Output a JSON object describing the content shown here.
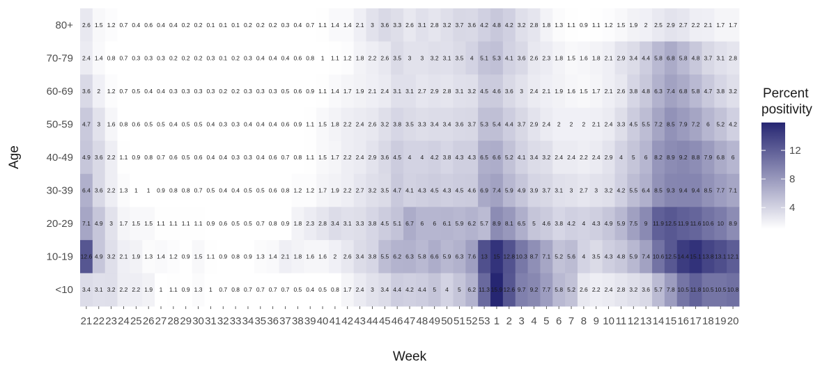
{
  "chart_data": {
    "type": "heatmap",
    "xlabel": "Week",
    "ylabel": "Age",
    "x": [
      "21",
      "22",
      "23",
      "24",
      "25",
      "26",
      "27",
      "28",
      "29",
      "30",
      "31",
      "32",
      "33",
      "34",
      "35",
      "36",
      "37",
      "38",
      "39",
      "40",
      "41",
      "42",
      "43",
      "44",
      "45",
      "46",
      "47",
      "48",
      "49",
      "50",
      "51",
      "52",
      "53",
      "1",
      "2",
      "3",
      "4",
      "5",
      "6",
      "7",
      "8",
      "9",
      "10",
      "11",
      "12",
      "13",
      "14",
      "15",
      "16",
      "17",
      "18",
      "19",
      "20"
    ],
    "y": [
      "80+",
      "70-79",
      "60-69",
      "50-59",
      "40-49",
      "30-39",
      "20-29",
      "10-19",
      "<10"
    ],
    "values": [
      [
        2.6,
        1.5,
        1.2,
        0.7,
        0.4,
        0.6,
        0.4,
        0.4,
        0.2,
        0.2,
        0.1,
        0.1,
        0.1,
        0.2,
        0.2,
        0.2,
        0.3,
        0.4,
        0.7,
        1.1,
        1.4,
        1.4,
        2.1,
        3,
        3.6,
        3.3,
        2.6,
        3.1,
        2.8,
        3.2,
        3.7,
        3.6,
        4.2,
        4.8,
        4.2,
        3.2,
        2.8,
        1.8,
        1.3,
        1.1,
        0.9,
        1.1,
        1.2,
        1.5,
        1.9,
        2,
        2.5,
        2.9,
        2.7,
        2.2,
        2.1,
        1.7,
        1.7
      ],
      [
        2.4,
        1.4,
        0.8,
        0.7,
        0.3,
        0.3,
        0.3,
        0.2,
        0.2,
        0.2,
        0.3,
        0.1,
        0.2,
        0.3,
        0.4,
        0.4,
        0.4,
        0.6,
        0.8,
        1,
        1.1,
        1.2,
        1.8,
        2.2,
        2.6,
        3.5,
        3,
        3,
        3.2,
        3.1,
        3.5,
        4,
        5.1,
        5.3,
        4.1,
        3.6,
        2.6,
        2.3,
        1.8,
        1.5,
        1.6,
        1.8,
        2.1,
        2.9,
        3.4,
        4.4,
        5.8,
        6.8,
        5.8,
        4.8,
        3.7,
        3.1,
        2.8
      ],
      [
        3.6,
        2,
        1.2,
        0.7,
        0.5,
        0.4,
        0.4,
        0.3,
        0.3,
        0.3,
        0.3,
        0.2,
        0.2,
        0.3,
        0.3,
        0.3,
        0.5,
        0.6,
        0.9,
        1.1,
        1.4,
        1.7,
        1.9,
        2.1,
        2.4,
        3.1,
        3.1,
        2.7,
        2.9,
        2.8,
        3.1,
        3.2,
        4.5,
        4.6,
        3.6,
        3,
        2.4,
        2.1,
        1.9,
        1.6,
        1.5,
        1.7,
        2.1,
        2.6,
        3.8,
        4.8,
        6.3,
        7.4,
        6.8,
        5.8,
        4.7,
        3.8,
        3.2
      ],
      [
        4.7,
        3,
        1.6,
        0.8,
        0.6,
        0.5,
        0.5,
        0.4,
        0.5,
        0.5,
        0.4,
        0.3,
        0.3,
        0.4,
        0.4,
        0.4,
        0.6,
        0.9,
        1.1,
        1.5,
        1.8,
        2.2,
        2.4,
        2.6,
        3.2,
        3.8,
        3.5,
        3.3,
        3.4,
        3.4,
        3.6,
        3.7,
        5.3,
        5.4,
        4.4,
        3.7,
        2.9,
        2.4,
        2,
        2,
        2,
        2.1,
        2.4,
        3.3,
        4.5,
        5.5,
        7.2,
        8.5,
        7.9,
        7.2,
        6,
        5.2,
        4.2
      ],
      [
        4.9,
        3.6,
        2.2,
        1.1,
        0.9,
        0.8,
        0.7,
        0.6,
        0.5,
        0.6,
        0.4,
        0.4,
        0.3,
        0.3,
        0.4,
        0.6,
        0.7,
        0.8,
        1.1,
        1.5,
        1.7,
        2.2,
        2.4,
        2.9,
        3.6,
        4.5,
        4,
        4,
        4.2,
        3.8,
        4.3,
        4.3,
        6.5,
        6.6,
        5.2,
        4.1,
        3.4,
        3.2,
        2.4,
        2.4,
        2.2,
        2.4,
        2.9,
        4,
        5,
        6,
        8.2,
        8.9,
        9.2,
        8.8,
        7.9,
        6.8,
        6
      ],
      [
        6.4,
        3.6,
        2.2,
        1.3,
        1,
        1,
        0.9,
        0.8,
        0.8,
        0.7,
        0.5,
        0.4,
        0.4,
        0.5,
        0.5,
        0.6,
        0.8,
        1.2,
        1.2,
        1.7,
        1.9,
        2.2,
        2.7,
        3.2,
        3.5,
        4.7,
        4.1,
        4.3,
        4.5,
        4.3,
        4.5,
        4.6,
        6.9,
        7.4,
        5.9,
        4.9,
        3.9,
        3.7,
        3.1,
        3,
        2.7,
        3,
        3.2,
        4.2,
        5.5,
        6.4,
        8.5,
        9.3,
        9.4,
        9.4,
        8.5,
        7.7,
        7.1
      ],
      [
        7.1,
        4.9,
        3,
        1.7,
        1.5,
        1.5,
        1.1,
        1.1,
        1.1,
        1.1,
        0.9,
        0.6,
        0.5,
        0.5,
        0.7,
        0.8,
        0.9,
        1.8,
        2.3,
        2.8,
        3.4,
        3.1,
        3.3,
        3.8,
        4.5,
        5.1,
        6.7,
        6,
        6,
        6.1,
        5.9,
        6.2,
        5.7,
        8.9,
        8.1,
        6.5,
        5,
        4.6,
        3.8,
        4.2,
        4,
        4.3,
        4.9,
        5.9,
        7.5,
        9,
        11.9,
        12.5,
        11.9,
        11.6,
        10.6,
        10.0,
        8.9
      ],
      [
        12.6,
        4.9,
        3.2,
        2.1,
        1.9,
        1.3,
        1.4,
        1.2,
        0.9,
        1.5,
        1.1,
        0.9,
        0.8,
        0.9,
        1.3,
        1.4,
        2.1,
        1.8,
        1.6,
        1.6,
        2,
        2.6,
        3.4,
        3.8,
        5.5,
        6.2,
        6.3,
        5.8,
        6.6,
        5.9,
        6.3,
        7.6,
        13,
        15,
        12.8,
        10.3,
        8.7,
        7.1,
        5.2,
        5.6,
        4,
        3.5,
        4.3,
        4.8,
        5.9,
        7.4,
        10.6,
        12.5,
        14.4,
        15.1,
        13.8,
        13.1,
        12.1
      ],
      [
        3.4,
        3.1,
        3.2,
        2.2,
        2.2,
        1.9,
        1,
        1.1,
        0.9,
        1.3,
        1,
        0.7,
        0.8,
        0.7,
        0.7,
        0.7,
        0.7,
        0.5,
        0.4,
        0.5,
        0.8,
        1.7,
        2.4,
        3,
        3.4,
        4.4,
        4.2,
        4.4,
        5,
        4,
        5,
        6.2,
        11.3,
        15.9,
        12.6,
        9.7,
        9.2,
        7.7,
        5.8,
        5.2,
        2.6,
        2.2,
        2.4,
        2.8,
        3.2,
        3.6,
        5.7,
        7.8,
        10.5,
        11.8,
        10.5,
        10.5,
        10.8
      ]
    ],
    "legend": {
      "title": [
        "Percent",
        "positivity"
      ],
      "ticks": [
        4,
        8,
        12
      ],
      "range": [
        1,
        15.9
      ],
      "color_low": "#ffffff",
      "color_high": "#262672",
      "placement": "right"
    },
    "background": "#ebebeb",
    "grid": true
  }
}
